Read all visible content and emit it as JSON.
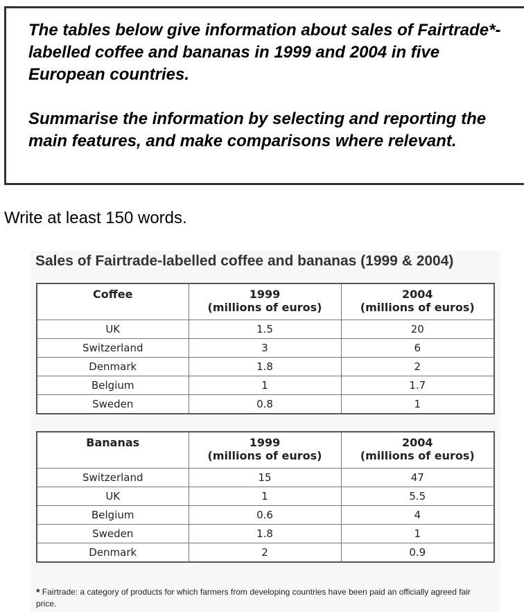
{
  "prompt": {
    "paragraph1": "The tables below give information about sales of Fairtrade*-labelled coffee and bananas in 1999 and 2004 in five European countries.",
    "paragraph2": "Summarise the information by selecting and reporting the main features, and make comparisons where relevant."
  },
  "instruction": "Write at least 150 words.",
  "figure_title": "Sales of Fairtrade-labelled coffee and bananas (1999 & 2004)",
  "tables": {
    "coffee": {
      "header": [
        "Coffee",
        "1999",
        "(millions of euros)",
        "2004",
        "(millions of euros)"
      ],
      "rows": [
        [
          "UK",
          "1.5",
          "20"
        ],
        [
          "Switzerland",
          "3",
          "6"
        ],
        [
          "Denmark",
          "1.8",
          "2"
        ],
        [
          "Belgium",
          "1",
          "1.7"
        ],
        [
          "Sweden",
          "0.8",
          "1"
        ]
      ]
    },
    "bananas": {
      "header": [
        "Bananas",
        "1999",
        "(millions of euros)",
        "2004",
        "(millions of euros)"
      ],
      "rows": [
        [
          "Switzerland",
          "15",
          "47"
        ],
        [
          "UK",
          "1",
          "5.5"
        ],
        [
          "Belgium",
          "0.6",
          "4"
        ],
        [
          "Sweden",
          "1.8",
          "1"
        ],
        [
          "Denmark",
          "2",
          "0.9"
        ]
      ]
    }
  },
  "footnote": {
    "star": "*",
    "text": "Fairtrade: a category of products for which farmers from developing countries have been paid an officially agreed fair price."
  }
}
